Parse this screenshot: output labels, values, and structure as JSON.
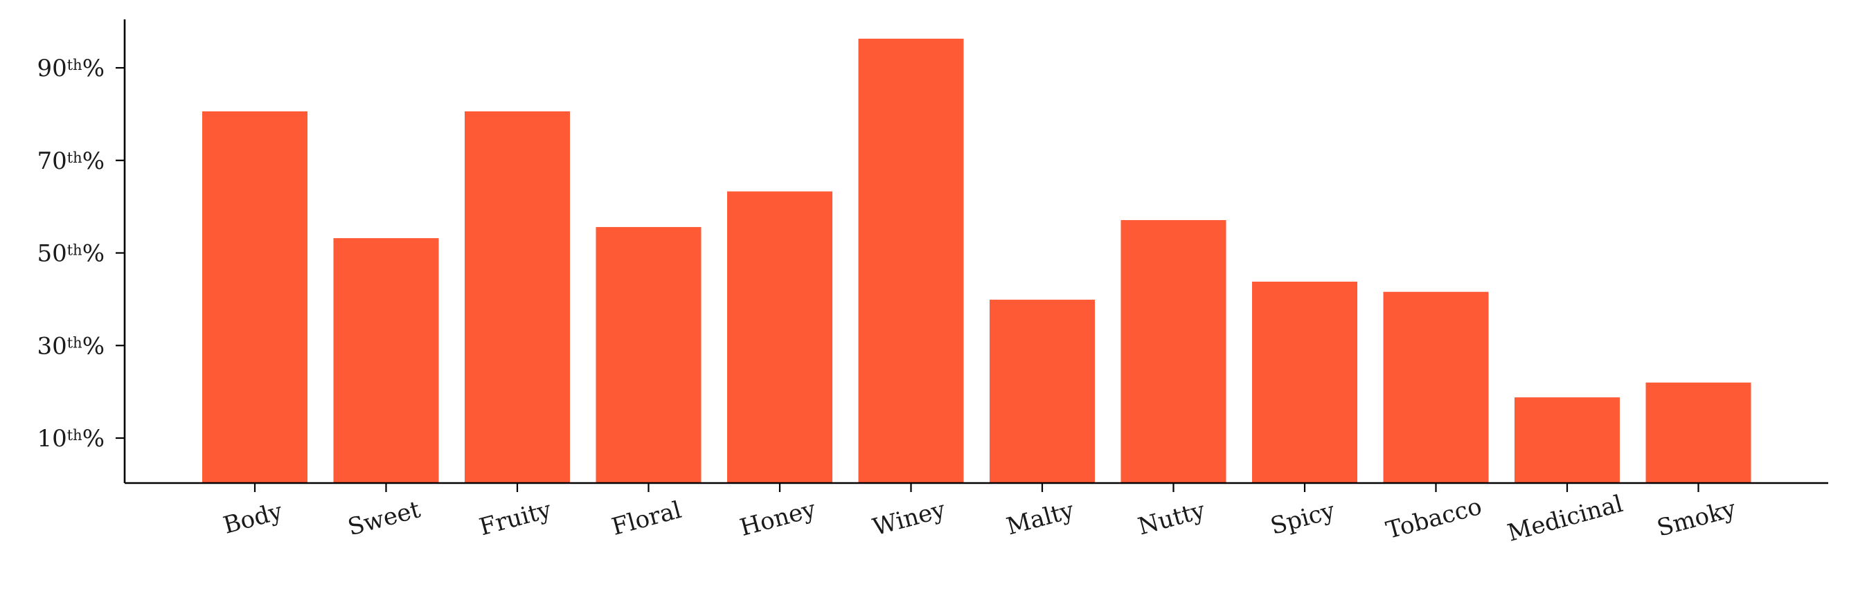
{
  "chart_data": {
    "type": "bar",
    "title": "",
    "xlabel": "",
    "ylabel": "",
    "categories": [
      "Body",
      "Sweet",
      "Fruity",
      "Floral",
      "Honey",
      "Winey",
      "Malty",
      "Nutty",
      "Spicy",
      "Tobacco",
      "Medicinal",
      "Smoky"
    ],
    "values": [
      80.6,
      53.2,
      80.6,
      55.6,
      63.3,
      96.3,
      39.9,
      57.1,
      43.8,
      41.6,
      18.8,
      22.0
    ],
    "ylim": [
      0,
      100
    ],
    "yticks": [
      {
        "value": 10,
        "num": "10",
        "sup": "th",
        "suffix": "%"
      },
      {
        "value": 30,
        "num": "30",
        "sup": "th",
        "suffix": "%"
      },
      {
        "value": 50,
        "num": "50",
        "sup": "th",
        "suffix": "%"
      },
      {
        "value": 70,
        "num": "70",
        "sup": "th",
        "suffix": "%"
      },
      {
        "value": 90,
        "num": "90",
        "sup": "th",
        "suffix": "%"
      }
    ],
    "bar_color": "#ff5a36",
    "grid": false,
    "legend": "none"
  }
}
